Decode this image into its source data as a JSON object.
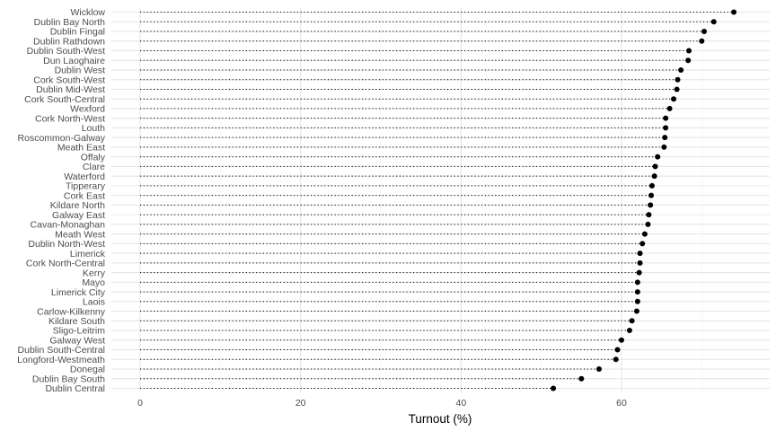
{
  "chart_data": {
    "type": "dot",
    "xlabel": "Turnout (%)",
    "ylabel": "",
    "title": "",
    "xlim": [
      -3.6,
      78.0
    ],
    "x_ticks": [
      0,
      20,
      40,
      60
    ],
    "x_tick_labels": [
      "0",
      "20",
      "40",
      "60"
    ],
    "grid": true,
    "legend": "none",
    "colors": {
      "point": "#000000",
      "stem": "#000000",
      "grid_major": "#e6e6e6",
      "grid_minor": "#f2f2f2"
    },
    "points": [
      {
        "label": "Wicklow",
        "value": 74.0
      },
      {
        "label": "Dublin Bay North",
        "value": 71.5
      },
      {
        "label": "Dublin Fingal",
        "value": 70.3
      },
      {
        "label": "Dublin Rathdown",
        "value": 70.0
      },
      {
        "label": "Dublin South-West",
        "value": 68.4
      },
      {
        "label": "Dun Laoghaire",
        "value": 68.3
      },
      {
        "label": "Dublin West",
        "value": 67.4
      },
      {
        "label": "Cork South-West",
        "value": 67.0
      },
      {
        "label": "Dublin Mid-West",
        "value": 66.9
      },
      {
        "label": "Cork South-Central",
        "value": 66.5
      },
      {
        "label": "Wexford",
        "value": 66.0
      },
      {
        "label": "Cork North-West",
        "value": 65.5
      },
      {
        "label": "Louth",
        "value": 65.5
      },
      {
        "label": "Roscommon-Galway",
        "value": 65.4
      },
      {
        "label": "Meath East",
        "value": 65.3
      },
      {
        "label": "Offaly",
        "value": 64.5
      },
      {
        "label": "Clare",
        "value": 64.2
      },
      {
        "label": "Waterford",
        "value": 64.1
      },
      {
        "label": "Tipperary",
        "value": 63.8
      },
      {
        "label": "Cork East",
        "value": 63.7
      },
      {
        "label": "Kildare North",
        "value": 63.6
      },
      {
        "label": "Galway East",
        "value": 63.4
      },
      {
        "label": "Cavan-Monaghan",
        "value": 63.3
      },
      {
        "label": "Meath West",
        "value": 62.9
      },
      {
        "label": "Dublin North-West",
        "value": 62.6
      },
      {
        "label": "Limerick",
        "value": 62.3
      },
      {
        "label": "Cork North-Central",
        "value": 62.3
      },
      {
        "label": "Kerry",
        "value": 62.2
      },
      {
        "label": "Mayo",
        "value": 62.0
      },
      {
        "label": "Limerick City",
        "value": 62.0
      },
      {
        "label": "Laois",
        "value": 62.0
      },
      {
        "label": "Carlow-Kilkenny",
        "value": 61.9
      },
      {
        "label": "Kildare South",
        "value": 61.3
      },
      {
        "label": "Sligo-Leitrim",
        "value": 61.0
      },
      {
        "label": "Galway West",
        "value": 60.0
      },
      {
        "label": "Dublin South-Central",
        "value": 59.5
      },
      {
        "label": "Longford-Westmeath",
        "value": 59.3
      },
      {
        "label": "Donegal",
        "value": 57.2
      },
      {
        "label": "Dublin Bay South",
        "value": 55.0
      },
      {
        "label": "Dublin Central",
        "value": 51.5
      }
    ]
  }
}
